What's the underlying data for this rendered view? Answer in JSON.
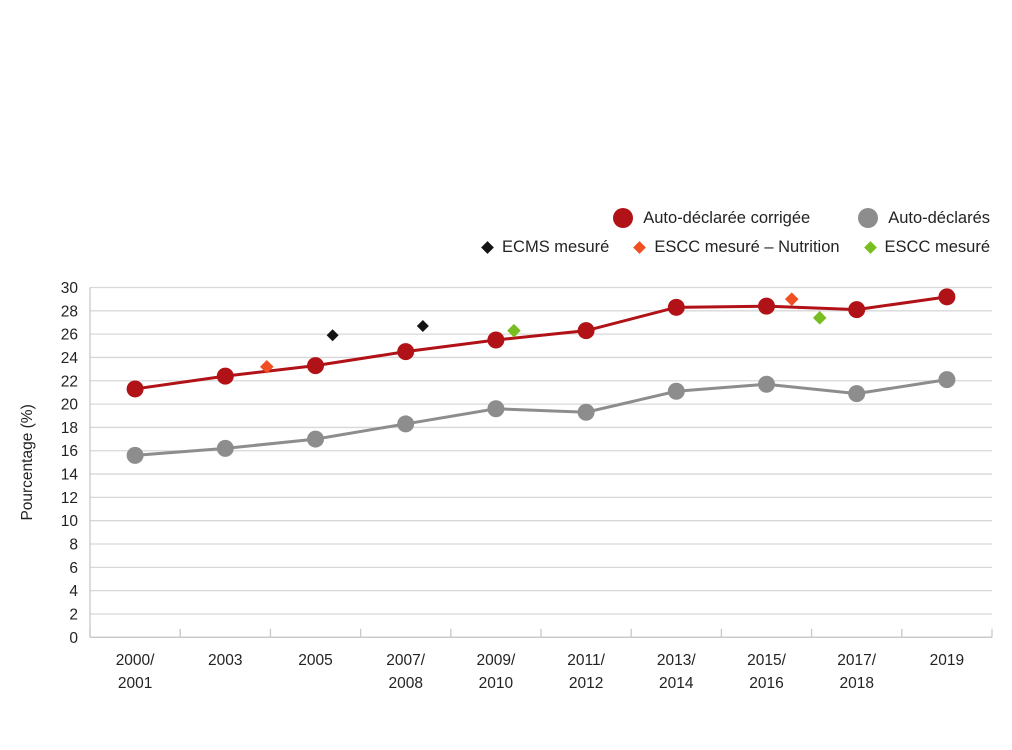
{
  "legend": {
    "row1": [
      {
        "id": "auto-declaree-corrigee",
        "label": "Auto-déclarée corrigée",
        "marker": "circle",
        "color": "#b11217"
      },
      {
        "id": "auto-declares",
        "label": "Auto-déclarés",
        "marker": "circle",
        "color": "#8d8d8d"
      }
    ],
    "row2": [
      {
        "id": "ecms-mesure",
        "label": "ECMS mesuré",
        "marker": "diamond",
        "color": "#141414"
      },
      {
        "id": "escc-mesure-nutrition",
        "label": "ESCC mesuré – Nutrition",
        "marker": "diamond",
        "color": "#f04e23"
      },
      {
        "id": "escc-mesure",
        "label": "ESCC mesuré",
        "marker": "diamond",
        "color": "#79be20"
      }
    ]
  },
  "chart_data": {
    "type": "line",
    "title": "",
    "xlabel": "",
    "ylabel": "Pourcentage (%)",
    "ylim": [
      0,
      30
    ],
    "ytick_step": 2,
    "grid": true,
    "legend_position": "top-right",
    "categories": [
      "2000/|2001",
      "2003",
      "2005",
      "2007/|2008",
      "2009/|2010",
      "2011/|2012",
      "2013/|2014",
      "2015/|2016",
      "2017/|2018",
      "2019"
    ],
    "series": [
      {
        "name": "Auto-déclarée corrigée",
        "marker": "circle",
        "color": "#b11217",
        "values": [
          21.3,
          22.4,
          23.3,
          24.5,
          25.5,
          26.3,
          28.3,
          28.4,
          28.1,
          29.2
        ]
      },
      {
        "name": "Auto-déclarés",
        "marker": "circle",
        "color": "#8d8d8d",
        "values": [
          15.6,
          16.2,
          17.0,
          18.3,
          19.6,
          19.3,
          21.1,
          21.7,
          20.9,
          22.1
        ]
      }
    ],
    "point_series": [
      {
        "name": "ECMS mesuré",
        "marker": "diamond",
        "color": "#141414",
        "points": [
          {
            "x": 2.19,
            "y": 25.9
          },
          {
            "x": 3.19,
            "y": 26.7
          }
        ]
      },
      {
        "name": "ESCC mesuré – Nutrition",
        "marker": "diamond",
        "color": "#f04e23",
        "points": [
          {
            "x": 1.46,
            "y": 23.2
          },
          {
            "x": 7.28,
            "y": 29.0
          }
        ]
      },
      {
        "name": "ESCC mesuré",
        "marker": "diamond",
        "color": "#79be20",
        "points": [
          {
            "x": 4.2,
            "y": 26.3
          },
          {
            "x": 7.59,
            "y": 27.4
          }
        ]
      }
    ]
  },
  "style": {
    "grid_color": "#d8d8d8",
    "axis_color": "#c9c9c9",
    "text_color": "#232323"
  }
}
